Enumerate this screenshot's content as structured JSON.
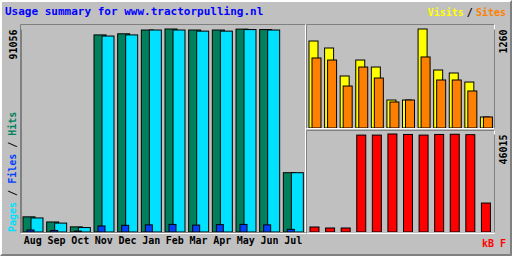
{
  "chart_data": [
    {
      "type": "bar",
      "title": "Usage summary for www.tractorpulling.nl",
      "categories": [
        "Aug",
        "Sep",
        "Oct",
        "Nov",
        "Dec",
        "Jan",
        "Feb",
        "Mar",
        "Apr",
        "May",
        "Jun",
        "Jul"
      ],
      "series": [
        {
          "name": "Hits",
          "color": "#00805C",
          "values": [
            6800,
            4500,
            2300,
            88400,
            88900,
            90600,
            91056,
            90600,
            90600,
            91000,
            90800,
            26600
          ]
        },
        {
          "name": "Pages",
          "color": "#00E0FF",
          "values": [
            6300,
            4000,
            2000,
            87900,
            88400,
            90600,
            90600,
            90100,
            90100,
            90800,
            90600,
            26600
          ]
        },
        {
          "name": "Files",
          "color": "#0040FF",
          "values": [
            900,
            700,
            400,
            2700,
            3000,
            3200,
            3400,
            3100,
            3300,
            3400,
            3200,
            1200
          ]
        }
      ],
      "annotations": [
        "/",
        "/"
      ],
      "ylim": [
        0,
        91056
      ],
      "yticks": [
        91056
      ],
      "grid": false
    },
    {
      "type": "bar",
      "series": [
        {
          "name": "Visits",
          "color": "#FFFF00",
          "values": [
            1107,
            1018,
            662,
            865,
            776,
            356,
            356,
            1260,
            738,
            700,
            585,
            140
          ]
        },
        {
          "name": "Sites",
          "color": "#FF8000",
          "values": [
            891,
            865,
            534,
            776,
            636,
            331,
            356,
            904,
            611,
            611,
            471,
            140
          ]
        }
      ],
      "annotations": [
        "/"
      ],
      "ylim": [
        0,
        1260
      ],
      "yticks": [
        1260
      ],
      "grid": false
    },
    {
      "type": "bar",
      "series": [
        {
          "name": "kB F",
          "color": "#FF0000",
          "values": [
            2350,
            1880,
            1880,
            45500,
            45500,
            46015,
            45800,
            45500,
            45800,
            45900,
            45700,
            13600
          ]
        }
      ],
      "ylim": [
        0,
        46015
      ],
      "yticks": [
        46015
      ],
      "grid": false
    }
  ]
}
